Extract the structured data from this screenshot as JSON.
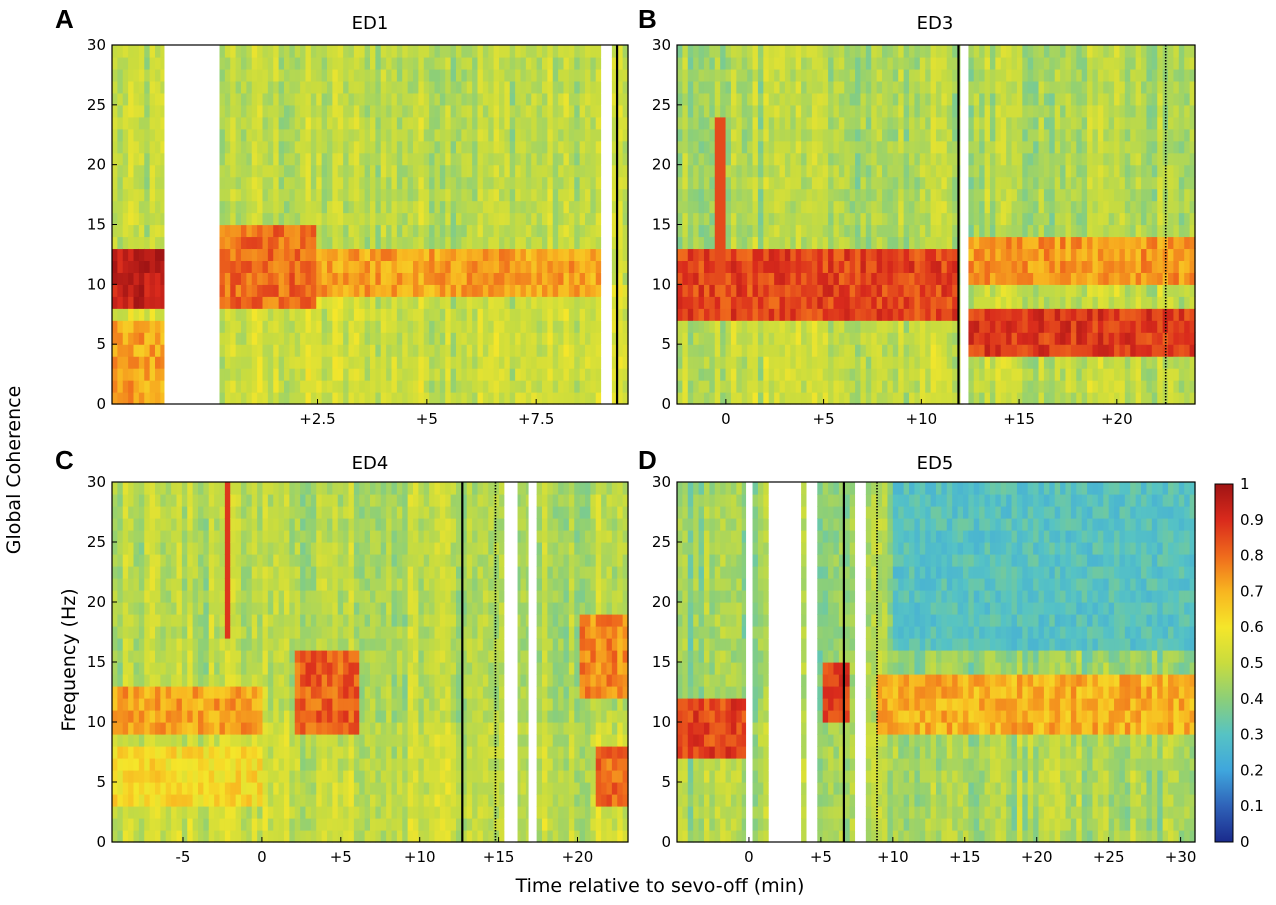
{
  "figure": {
    "ylabel_outer": "Global Coherence",
    "ylabel_inner": "Frequency (Hz)",
    "xlabel": "Time relative to sevo-off (min)"
  },
  "colorbar": {
    "ticks": [
      "1",
      "0.9",
      "0.8",
      "0.7",
      "0.6",
      "0.5",
      "0.4",
      "0.3",
      "0.2",
      "0.1",
      "0"
    ],
    "colors": [
      "#1a2a8c",
      "#2f62b8",
      "#3fa6dd",
      "#56c3c4",
      "#8ccf78",
      "#c9dc3e",
      "#f5e62a",
      "#f8b520",
      "#ef6a1c",
      "#d92a1c",
      "#a01414"
    ]
  },
  "chart_data": [
    {
      "panel": "A",
      "title": "ED1",
      "type": "heatmap",
      "ylim": [
        0,
        30
      ],
      "yticks": [
        "0",
        "5",
        "10",
        "15",
        "20",
        "25",
        "30"
      ],
      "xlim": [
        -2.2,
        9.6
      ],
      "xticks": [
        {
          "v": 2.5,
          "label": "+2.5"
        },
        {
          "v": 5,
          "label": "+5"
        },
        {
          "v": 7.5,
          "label": "+7.5"
        }
      ],
      "gaps": [
        [
          -1.0,
          0.25
        ],
        [
          9.0,
          9.2
        ]
      ],
      "markers": [
        {
          "t": 9.35,
          "style": "solid"
        }
      ],
      "baseline": 0.48,
      "bands": [
        {
          "t0": -2.2,
          "t1": -1.0,
          "f0": 8,
          "f1": 13,
          "v": 0.95
        },
        {
          "t0": -2.2,
          "t1": -1.0,
          "f0": 0,
          "f1": 7,
          "v": 0.72
        },
        {
          "t0": 0.25,
          "t1": 2.5,
          "f0": 8,
          "f1": 15,
          "v": 0.8
        },
        {
          "t0": 2.5,
          "t1": 9.0,
          "f0": 9,
          "f1": 13,
          "v": 0.72
        }
      ],
      "streaks": []
    },
    {
      "panel": "B",
      "title": "ED3",
      "type": "heatmap",
      "ylim": [
        0,
        30
      ],
      "yticks": [
        "0",
        "5",
        "10",
        "15",
        "20",
        "25",
        "30"
      ],
      "xlim": [
        -2.5,
        24.0
      ],
      "xticks": [
        {
          "v": 0,
          "label": "0"
        },
        {
          "v": 5,
          "label": "+5"
        },
        {
          "v": 10,
          "label": "+10"
        },
        {
          "v": 15,
          "label": "+15"
        },
        {
          "v": 20,
          "label": "+20"
        }
      ],
      "gaps": [
        [
          12.0,
          12.4
        ]
      ],
      "markers": [
        {
          "t": 11.9,
          "style": "solid"
        },
        {
          "t": 22.5,
          "style": "dotted"
        }
      ],
      "baseline": 0.46,
      "bands": [
        {
          "t0": -2.5,
          "t1": 11.9,
          "f0": 7,
          "f1": 13,
          "v": 0.86
        },
        {
          "t0": 12.4,
          "t1": 24.0,
          "f0": 4,
          "f1": 8,
          "v": 0.88
        },
        {
          "t0": 12.4,
          "t1": 24.0,
          "f0": 10,
          "f1": 14,
          "v": 0.74
        }
      ],
      "streaks": [
        {
          "t": -0.3,
          "f0": 10,
          "f1": 24,
          "v": 0.85
        }
      ]
    },
    {
      "panel": "C",
      "title": "ED4",
      "type": "heatmap",
      "ylim": [
        0,
        30
      ],
      "yticks": [
        "0",
        "5",
        "10",
        "15",
        "20",
        "25",
        "30"
      ],
      "xlim": [
        -9.5,
        23.2
      ],
      "xticks": [
        {
          "v": -5,
          "label": "-5"
        },
        {
          "v": 0,
          "label": "0"
        },
        {
          "v": 5,
          "label": "+5"
        },
        {
          "v": 10,
          "label": "+10"
        },
        {
          "v": 15,
          "label": "+15"
        },
        {
          "v": 20,
          "label": "+20"
        }
      ],
      "gaps": [
        [
          15.5,
          16.2
        ],
        [
          16.9,
          17.3
        ]
      ],
      "markers": [
        {
          "t": 12.7,
          "style": "solid"
        },
        {
          "t": 14.8,
          "style": "dotted"
        }
      ],
      "baseline": 0.47,
      "bands": [
        {
          "t0": -9.5,
          "t1": 0.0,
          "f0": 9,
          "f1": 13,
          "v": 0.72
        },
        {
          "t0": -9.5,
          "t1": 0.0,
          "f0": 3,
          "f1": 8,
          "v": 0.62
        },
        {
          "t0": 2.0,
          "t1": 6.0,
          "f0": 9,
          "f1": 16,
          "v": 0.82
        },
        {
          "t0": 20.0,
          "t1": 23.2,
          "f0": 12,
          "f1": 19,
          "v": 0.76
        },
        {
          "t0": 21.0,
          "t1": 23.2,
          "f0": 3,
          "f1": 8,
          "v": 0.8
        }
      ],
      "streaks": [
        {
          "t": -2.2,
          "f0": 17,
          "f1": 30,
          "v": 0.88
        }
      ]
    },
    {
      "panel": "D",
      "title": "ED5",
      "type": "heatmap",
      "ylim": [
        0,
        30
      ],
      "yticks": [
        "0",
        "5",
        "10",
        "15",
        "20",
        "25",
        "30"
      ],
      "xlim": [
        -5.0,
        31.0
      ],
      "xticks": [
        {
          "v": 0,
          "label": "0"
        },
        {
          "v": 5,
          "label": "+5"
        },
        {
          "v": 10,
          "label": "+10"
        },
        {
          "v": 15,
          "label": "+15"
        },
        {
          "v": 20,
          "label": "+20"
        },
        {
          "v": 25,
          "label": "+25"
        },
        {
          "v": 30,
          "label": "+30"
        }
      ],
      "gaps": [
        [
          -0.2,
          0.1
        ],
        [
          1.5,
          3.5
        ],
        [
          4.0,
          4.6
        ],
        [
          7.5,
          8.1
        ]
      ],
      "markers": [
        {
          "t": 6.6,
          "style": "solid"
        },
        {
          "t": 8.9,
          "style": "dotted"
        }
      ],
      "baseline": 0.42,
      "bands": [
        {
          "t0": -5.0,
          "t1": -0.2,
          "f0": 7,
          "f1": 12,
          "v": 0.86
        },
        {
          "t0": 5.0,
          "t1": 7.0,
          "f0": 10,
          "f1": 15,
          "v": 0.88
        },
        {
          "t0": 9.0,
          "t1": 31.0,
          "f0": 9,
          "f1": 14,
          "v": 0.7
        }
      ],
      "lowzone": {
        "t0": 10.0,
        "t1": 31.0,
        "f0": 16,
        "f1": 30,
        "v": 0.3
      },
      "streaks": []
    }
  ]
}
